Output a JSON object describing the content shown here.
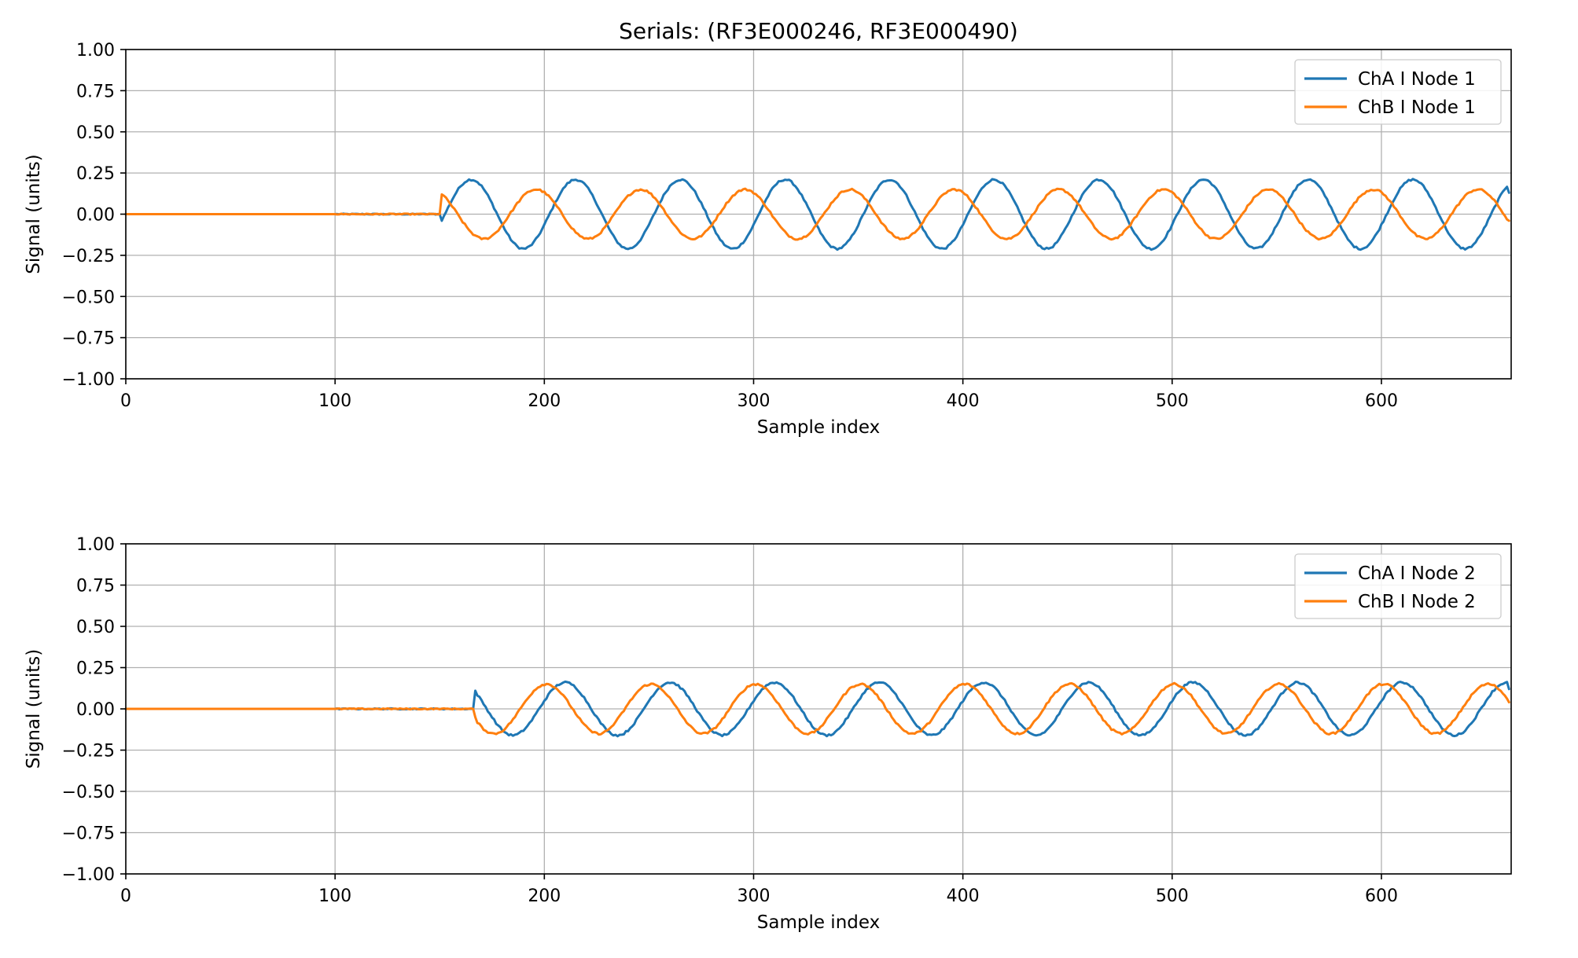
{
  "chart_data": [
    {
      "type": "line",
      "title": "Serials: (RF3E000246, RF3E000490)",
      "xlabel": "Sample index",
      "ylabel": "Signal (units)",
      "xlim": [
        0,
        662
      ],
      "ylim": [
        -1.0,
        1.0
      ],
      "xticks": [
        0,
        100,
        200,
        300,
        400,
        500,
        600
      ],
      "xtick_labels": [
        "0",
        "100",
        "200",
        "300",
        "400",
        "500",
        "600"
      ],
      "yticks": [
        1.0,
        0.75,
        0.5,
        0.25,
        0.0,
        -0.25,
        -0.5,
        -0.75,
        -1.0
      ],
      "ytick_labels": [
        "1.00",
        "0.75",
        "0.50",
        "0.25",
        "0.00",
        "−0.25",
        "−0.50",
        "−0.75",
        "−1.00"
      ],
      "grid": true,
      "legend_position": "top-right",
      "series": [
        {
          "name": "ChA I Node 1",
          "color": "#1f77b4",
          "start_index": 150,
          "amplitude": 0.21,
          "period": 50,
          "peak_index": 165,
          "onset_value": -0.04,
          "end_index": 661,
          "end_value": 0.13
        },
        {
          "name": "ChB I Node 1",
          "color": "#ff7f0e",
          "start_index": 150,
          "amplitude": 0.15,
          "period": 50,
          "peak_index": 196,
          "onset_value": 0.12,
          "end_index": 661,
          "end_value": -0.04
        }
      ]
    },
    {
      "type": "line",
      "title": "",
      "xlabel": "Sample index",
      "ylabel": "Signal (units)",
      "xlim": [
        0,
        662
      ],
      "ylim": [
        -1.0,
        1.0
      ],
      "xticks": [
        0,
        100,
        200,
        300,
        400,
        500,
        600
      ],
      "xtick_labels": [
        "0",
        "100",
        "200",
        "300",
        "400",
        "500",
        "600"
      ],
      "yticks": [
        1.0,
        0.75,
        0.5,
        0.25,
        0.0,
        -0.25,
        -0.5,
        -0.75,
        -1.0
      ],
      "ytick_labels": [
        "1.00",
        "0.75",
        "0.50",
        "0.25",
        "0.00",
        "−0.25",
        "−0.50",
        "−0.75",
        "−1.00"
      ],
      "grid": true,
      "legend_position": "top-right",
      "series": [
        {
          "name": "ChA I Node 2",
          "color": "#1f77b4",
          "start_index": 166,
          "amplitude": 0.16,
          "period": 50,
          "peak_index": 210,
          "onset_value": 0.11,
          "end_index": 661,
          "end_value": 0.12
        },
        {
          "name": "ChB I Node 2",
          "color": "#ff7f0e",
          "start_index": 166,
          "amplitude": 0.15,
          "period": 50,
          "peak_index": 201,
          "onset_value": -0.05,
          "end_index": 661,
          "end_value": 0.04
        }
      ]
    }
  ]
}
